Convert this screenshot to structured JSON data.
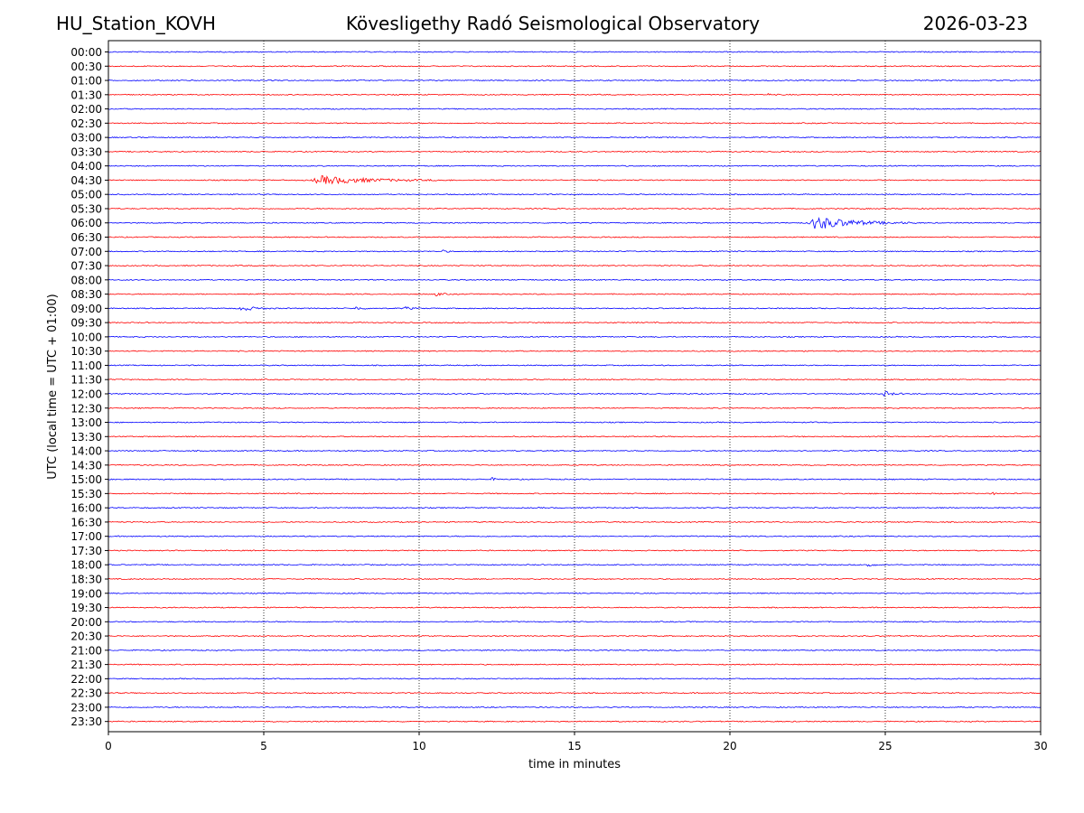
{
  "header": {
    "station": "HU_Station_KOVH",
    "observatory": "Kövesligethy Radó Seismological Observatory",
    "date": "2026-03-23"
  },
  "chart_data": {
    "type": "line",
    "title": "Kövesligethy Radó Seismological Observatory",
    "xlabel": "time in minutes",
    "ylabel": "UTC (local time = UTC + 01:00)",
    "xlim": [
      0,
      30
    ],
    "xticks": [
      0,
      5,
      10,
      15,
      20,
      25,
      30
    ],
    "vertical_gridlines_at_minutes": [
      5,
      10,
      15,
      20,
      25
    ],
    "grid": "dotted vertical",
    "trace_colors": [
      "#0000ff",
      "#ff0000"
    ],
    "rows": [
      "00:00",
      "00:30",
      "01:00",
      "01:30",
      "02:00",
      "02:30",
      "03:00",
      "03:30",
      "04:00",
      "04:30",
      "05:00",
      "05:30",
      "06:00",
      "06:30",
      "07:00",
      "07:30",
      "08:00",
      "08:30",
      "09:00",
      "09:30",
      "10:00",
      "10:30",
      "11:00",
      "11:30",
      "12:00",
      "12:30",
      "13:00",
      "13:30",
      "14:00",
      "14:30",
      "15:00",
      "15:30",
      "16:00",
      "16:30",
      "17:00",
      "17:30",
      "18:00",
      "18:30",
      "19:00",
      "19:30",
      "20:00",
      "20:30",
      "21:00",
      "21:30",
      "22:00",
      "22:30",
      "23:00",
      "23:30"
    ],
    "events": [
      {
        "row": "01:30",
        "start_min": 21.2,
        "duration_min": 0.2,
        "amplitude": 0.35
      },
      {
        "row": "04:30",
        "start_min": 6.5,
        "duration_min": 4.5,
        "amplitude": 1.0
      },
      {
        "row": "05:30",
        "start_min": 14.3,
        "duration_min": 0.3,
        "amplitude": 0.3
      },
      {
        "row": "06:00",
        "start_min": 22.5,
        "duration_min": 3.5,
        "amplitude": 1.6
      },
      {
        "row": "07:00",
        "start_min": 10.7,
        "duration_min": 0.4,
        "amplitude": 0.35
      },
      {
        "row": "08:30",
        "start_min": 10.5,
        "duration_min": 0.5,
        "amplitude": 0.45
      },
      {
        "row": "09:00",
        "start_min": 4.2,
        "duration_min": 1.2,
        "amplitude": 0.65
      },
      {
        "row": "09:00",
        "start_min": 7.9,
        "duration_min": 0.6,
        "amplitude": 0.45
      },
      {
        "row": "09:00",
        "start_min": 9.5,
        "duration_min": 0.6,
        "amplitude": 0.35
      },
      {
        "row": "12:00",
        "start_min": 24.9,
        "duration_min": 0.8,
        "amplitude": 0.6
      },
      {
        "row": "15:00",
        "start_min": 12.3,
        "duration_min": 0.5,
        "amplitude": 0.35
      },
      {
        "row": "15:30",
        "start_min": 28.4,
        "duration_min": 0.3,
        "amplitude": 0.35
      },
      {
        "row": "18:00",
        "start_min": 24.4,
        "duration_min": 0.4,
        "amplitude": 0.7
      }
    ]
  }
}
